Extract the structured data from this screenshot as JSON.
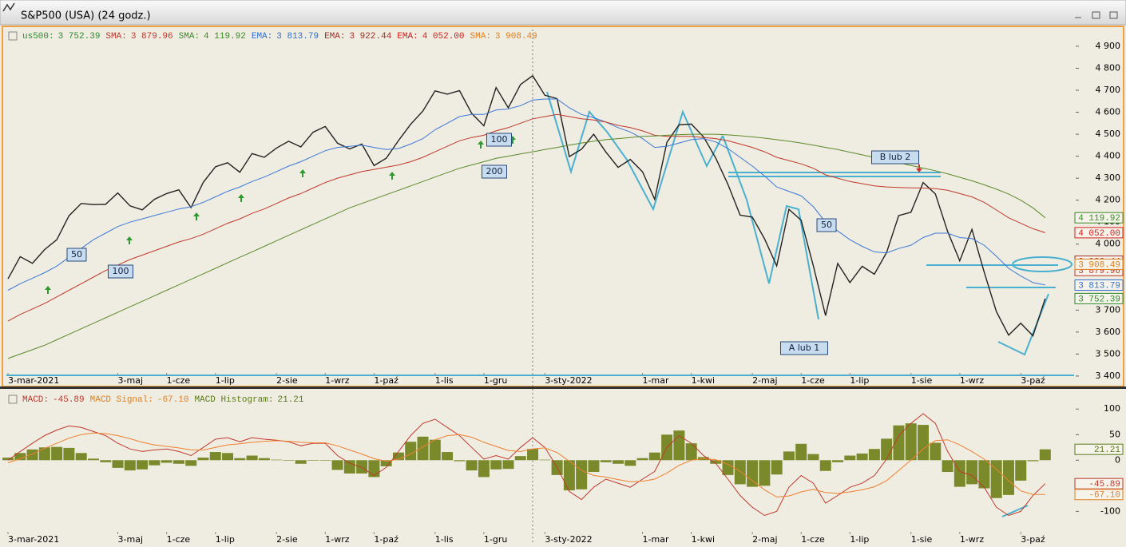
{
  "window": {
    "title": "S&P500 (USA) (24 godz.)"
  },
  "chart_data": [
    {
      "type": "line",
      "categories": [
        "3-mar-2021",
        null,
        null,
        null,
        null,
        null,
        null,
        null,
        null,
        "3-maj",
        null,
        null,
        null,
        "1-cze",
        null,
        null,
        null,
        "1-lip",
        null,
        null,
        null,
        null,
        "2-sie",
        null,
        null,
        null,
        "1-wrz",
        null,
        null,
        null,
        "1-paź",
        null,
        null,
        null,
        null,
        "1-lis",
        null,
        null,
        null,
        "1-gru",
        null,
        null,
        null,
        null,
        "3-sty-2022",
        null,
        null,
        null,
        null,
        null,
        null,
        null,
        "1-mar",
        null,
        null,
        null,
        "1-kwi",
        null,
        null,
        null,
        null,
        "2-maj",
        null,
        null,
        null,
        "1-cze",
        null,
        null,
        null,
        "1-lip",
        null,
        null,
        null,
        null,
        "1-sie",
        null,
        null,
        null,
        "1-wrz",
        null,
        null,
        null,
        null,
        "3-paź",
        null,
        null
      ],
      "ylim": [
        3367,
        4976
      ],
      "yticks": [
        {
          "value": 3400,
          "label": "3 400"
        },
        {
          "value": 3500,
          "label": "3 500"
        },
        {
          "value": 3600,
          "label": "3 600"
        },
        {
          "value": 3700,
          "label": "3 700"
        },
        {
          "value": 3800,
          "label": "3 800"
        },
        {
          "value": 3900,
          "label": "3 900"
        },
        {
          "value": 4000,
          "label": "4 000"
        },
        {
          "value": 4100,
          "label": "4 100"
        },
        {
          "value": 4200,
          "label": "4 200"
        },
        {
          "value": 4300,
          "label": "4 300"
        },
        {
          "value": 4400,
          "label": "4 400"
        },
        {
          "value": 4500,
          "label": "4 500"
        },
        {
          "value": 4600,
          "label": "4 600"
        },
        {
          "value": 4700,
          "label": "4 700"
        },
        {
          "value": 4800,
          "label": "4 800"
        },
        {
          "value": 4900,
          "label": "4 900"
        }
      ],
      "legend": [
        {
          "name": "us500:",
          "value": 3752.39,
          "label": "3 752.39",
          "color": "#2e8b2e"
        },
        {
          "name": "SMA:",
          "value": 3879.96,
          "label": "3 879.96",
          "color": "#c0392b"
        },
        {
          "name": "SMA:",
          "value": 4119.92,
          "label": "4 119.92",
          "color": "#3d8a2a"
        },
        {
          "name": "EMA:",
          "value": 3813.79,
          "label": "3 813.79",
          "color": "#2f6fd0"
        },
        {
          "name": "EMA:",
          "value": 3922.44,
          "label": "3 922.44",
          "color": "#a0302a"
        },
        {
          "name": "EMA:",
          "value": 4052.0,
          "label": "4 052.00",
          "color": "#d02020"
        },
        {
          "name": "SMA:",
          "value": 3908.49,
          "label": "3 908.49",
          "color": "#e08020"
        }
      ],
      "annotations": [
        "50",
        "100",
        "100",
        "200",
        "B lub 2",
        "50",
        "A lub 1"
      ],
      "series": [
        {
          "color": "#222222",
          "values": [
            3842,
            3943,
            3913,
            3975,
            4020,
            4129,
            4185,
            4180,
            4181,
            4233,
            4174,
            4156,
            4204,
            4230,
            4247,
            4166,
            4281,
            4352,
            4370,
            4327,
            4412,
            4395,
            4437,
            4468,
            4442,
            4509,
            4535,
            4459,
            4433,
            4455,
            4357,
            4391,
            4471,
            4545,
            4605,
            4697,
            4682,
            4698,
            4595,
            4538,
            4712,
            4620,
            4726,
            4766,
            4677,
            4662,
            4398,
            4432,
            4500,
            4419,
            4349,
            4385,
            4329,
            4204,
            4463,
            4543,
            4546,
            4488,
            4392,
            4272,
            4132,
            4123,
            4024,
            3901,
            4158,
            4109,
            3901,
            3675,
            3912,
            3825,
            3899,
            3863,
            3962,
            4130,
            4145,
            4280,
            4228,
            4058,
            3924,
            4067,
            3873,
            3693,
            3586,
            3640,
            3583,
            3752
          ]
        },
        {
          "color": "#3c78d8",
          "values": [
            3790,
            3820,
            3845,
            3870,
            3900,
            3940,
            3980,
            4020,
            4050,
            4080,
            4100,
            4115,
            4130,
            4145,
            4160,
            4170,
            4190,
            4215,
            4240,
            4260,
            4285,
            4305,
            4330,
            4355,
            4375,
            4400,
            4425,
            4440,
            4445,
            4450,
            4440,
            4430,
            4435,
            4455,
            4480,
            4520,
            4550,
            4580,
            4590,
            4590,
            4610,
            4615,
            4630,
            4655,
            4660,
            4660,
            4620,
            4590,
            4575,
            4555,
            4530,
            4510,
            4480,
            4440,
            4445,
            4460,
            4475,
            4480,
            4465,
            4435,
            4395,
            4355,
            4310,
            4260,
            4240,
            4220,
            4170,
            4100,
            4060,
            4020,
            3990,
            3965,
            3960,
            3980,
            3995,
            4030,
            4050,
            4050,
            4030,
            4025,
            3995,
            3945,
            3890,
            3855,
            3825,
            3814
          ]
        },
        {
          "color": "#c0392b",
          "values": [
            3650,
            3680,
            3705,
            3730,
            3760,
            3790,
            3820,
            3850,
            3880,
            3905,
            3930,
            3950,
            3970,
            3990,
            4010,
            4025,
            4045,
            4070,
            4095,
            4115,
            4140,
            4160,
            4185,
            4210,
            4230,
            4255,
            4280,
            4300,
            4315,
            4330,
            4340,
            4350,
            4360,
            4375,
            4395,
            4420,
            4445,
            4470,
            4485,
            4495,
            4515,
            4530,
            4550,
            4570,
            4580,
            4590,
            4580,
            4570,
            4565,
            4555,
            4540,
            4530,
            4515,
            4495,
            4490,
            4490,
            4490,
            4485,
            4480,
            4470,
            4455,
            4440,
            4420,
            4395,
            4380,
            4365,
            4345,
            4315,
            4300,
            4285,
            4275,
            4265,
            4260,
            4258,
            4256,
            4255,
            4252,
            4245,
            4230,
            4215,
            4190,
            4155,
            4120,
            4095,
            4070,
            4052
          ]
        },
        {
          "color": "#5a8a2a",
          "values": [
            3480,
            3500,
            3520,
            3540,
            3565,
            3590,
            3615,
            3640,
            3665,
            3690,
            3715,
            3740,
            3765,
            3790,
            3815,
            3840,
            3865,
            3890,
            3915,
            3940,
            3965,
            3990,
            4015,
            4040,
            4065,
            4090,
            4115,
            4140,
            4165,
            4185,
            4205,
            4225,
            4245,
            4265,
            4285,
            4305,
            4325,
            4345,
            4360,
            4375,
            4390,
            4400,
            4410,
            4420,
            4430,
            4440,
            4450,
            4460,
            4468,
            4475,
            4480,
            4485,
            4490,
            4492,
            4495,
            4498,
            4500,
            4500,
            4500,
            4497,
            4493,
            4488,
            4482,
            4475,
            4468,
            4460,
            4450,
            4440,
            4430,
            4418,
            4406,
            4394,
            4382,
            4370,
            4358,
            4346,
            4334,
            4320,
            4304,
            4288,
            4270,
            4250,
            4228,
            4200,
            4165,
            4120
          ]
        }
      ]
    },
    {
      "type": "line",
      "categories": [
        "3-mar-2021",
        null,
        null,
        null,
        null,
        null,
        null,
        null,
        null,
        "3-maj",
        null,
        null,
        null,
        "1-cze",
        null,
        null,
        null,
        "1-lip",
        null,
        null,
        null,
        null,
        "2-sie",
        null,
        null,
        null,
        "1-wrz",
        null,
        null,
        null,
        "1-paź",
        null,
        null,
        null,
        null,
        "1-lis",
        null,
        null,
        null,
        "1-gru",
        null,
        null,
        null,
        null,
        "3-sty-2022",
        null,
        null,
        null,
        null,
        null,
        null,
        null,
        "1-mar",
        null,
        null,
        null,
        "1-kwi",
        null,
        null,
        null,
        null,
        "2-maj",
        null,
        null,
        null,
        "1-cze",
        null,
        null,
        null,
        "1-lip",
        null,
        null,
        null,
        null,
        "1-sie",
        null,
        null,
        null,
        "1-wrz",
        null,
        null,
        null,
        null,
        "3-paź",
        null,
        null
      ],
      "ylim": [
        -165,
        130
      ],
      "yticks": [
        -100,
        -50,
        0,
        50,
        100
      ],
      "legend": [
        {
          "name": "MACD:",
          "value": -45.89,
          "label": "-45.89",
          "color": "#c0392b"
        },
        {
          "name": "MACD Signal:",
          "value": -67.1,
          "label": "-67.10",
          "color": "#e08020"
        },
        {
          "name": "MACD Histogram:",
          "value": 21.21,
          "label": "21.21",
          "color": "#5a7a1a"
        }
      ],
      "series": [
        {
          "type": "bar",
          "color": "#7a8a2a",
          "values": [
            5,
            14,
            21,
            25,
            26,
            24,
            14,
            3,
            -4,
            -15,
            -20,
            -18,
            -10,
            -5,
            -7,
            -11,
            5,
            16,
            14,
            4,
            9,
            4,
            1,
            -1,
            -7,
            -1,
            -1,
            -19,
            -26,
            -26,
            -33,
            -12,
            15,
            36,
            46,
            40,
            16,
            -2,
            -20,
            -33,
            -18,
            -17,
            8,
            22,
            1,
            -29,
            -59,
            -57,
            -23,
            -4,
            -7,
            -11,
            4,
            15,
            50,
            58,
            33,
            6,
            -7,
            -29,
            -47,
            -52,
            -50,
            -28,
            17,
            32,
            12,
            -21,
            -4,
            9,
            13,
            22,
            42,
            68,
            72,
            69,
            34,
            -23,
            -52,
            -47,
            -55,
            -74,
            -68,
            -40,
            -2,
            21.21
          ]
        },
        {
          "color": "#c0392b",
          "values": [
            0,
            17,
            33,
            48,
            59,
            67,
            64,
            56,
            48,
            33,
            22,
            17,
            20,
            22,
            17,
            9,
            25,
            41,
            44,
            36,
            44,
            41,
            39,
            36,
            28,
            33,
            33,
            9,
            -6,
            -14,
            -30,
            -14,
            17,
            48,
            72,
            80,
            64,
            48,
            25,
            2,
            9,
            2,
            25,
            44,
            25,
            -14,
            -61,
            -77,
            -53,
            -37,
            -45,
            -53,
            -37,
            -22,
            25,
            48,
            33,
            9,
            -6,
            -37,
            -69,
            -92,
            -108,
            -100,
            -53,
            -30,
            -45,
            -84,
            -69,
            -53,
            -45,
            -30,
            2,
            48,
            72,
            91,
            72,
            17,
            -22,
            -30,
            -53,
            -92,
            -108,
            -100,
            -69,
            -45.89
          ]
        },
        {
          "color": "#f08030",
          "values": [
            -5,
            3,
            12,
            23,
            33,
            43,
            50,
            53,
            52,
            48,
            42,
            35,
            30,
            27,
            24,
            20,
            20,
            25,
            30,
            32,
            35,
            37,
            38,
            37,
            35,
            34,
            34,
            28,
            20,
            12,
            3,
            -2,
            2,
            12,
            26,
            40,
            48,
            50,
            45,
            35,
            27,
            19,
            17,
            22,
            24,
            15,
            -2,
            -20,
            -30,
            -33,
            -38,
            -42,
            -41,
            -37,
            -25,
            -10,
            0,
            3,
            1,
            -8,
            -22,
            -40,
            -58,
            -72,
            -70,
            -62,
            -57,
            -63,
            -65,
            -62,
            -58,
            -52,
            -40,
            -20,
            0,
            22,
            38,
            40,
            30,
            17,
            2,
            -18,
            -40,
            -60,
            -67,
            -67.1
          ]
        }
      ]
    }
  ]
}
